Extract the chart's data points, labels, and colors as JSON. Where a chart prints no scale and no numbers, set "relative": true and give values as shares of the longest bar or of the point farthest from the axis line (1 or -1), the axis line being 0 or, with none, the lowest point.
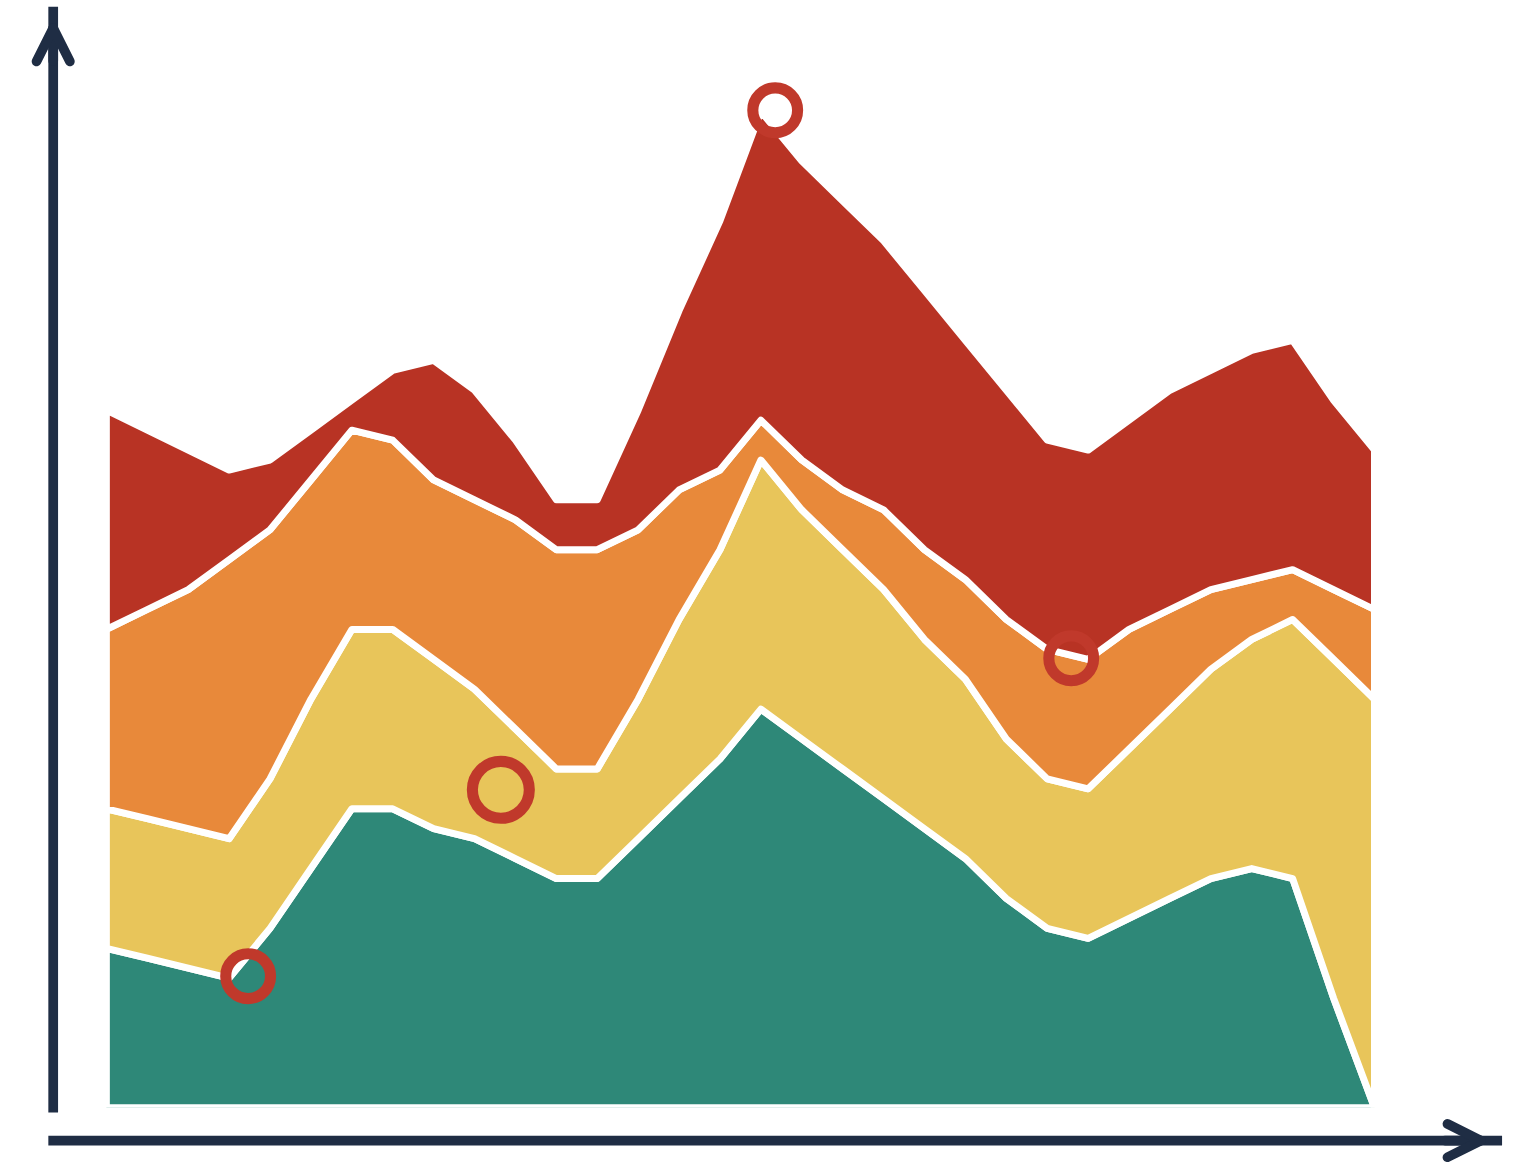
{
  "chart_data": {
    "type": "area",
    "relative": true,
    "stacked": true,
    "categories": [
      null,
      null,
      null,
      null,
      null,
      null,
      null,
      null,
      null,
      null,
      null,
      null,
      null,
      null,
      null,
      null,
      null,
      null,
      null,
      null,
      null,
      null,
      null,
      null,
      null,
      null,
      null,
      null,
      null,
      null,
      null,
      null
    ],
    "series": [
      {
        "color": "#2e8878",
        "values": [
          0.16,
          0.15,
          0.14,
          0.13,
          0.18,
          0.24,
          0.3,
          0.3,
          0.28,
          0.27,
          0.25,
          0.23,
          0.23,
          0.27,
          0.31,
          0.35,
          0.4,
          0.37,
          0.34,
          0.31,
          0.28,
          0.25,
          0.21,
          0.18,
          0.17,
          0.19,
          0.21,
          0.23,
          0.24,
          0.23,
          0.11,
          0
        ]
      },
      {
        "color": "#e8c55a",
        "values": [
          0.14,
          0.14,
          0.14,
          0.14,
          0.15,
          0.17,
          0.18,
          0.18,
          0.17,
          0.15,
          0.13,
          0.11,
          0.11,
          0.14,
          0.18,
          0.21,
          0.25,
          0.23,
          0.22,
          0.21,
          0.19,
          0.18,
          0.16,
          0.15,
          0.15,
          0.17,
          0.19,
          0.21,
          0.23,
          0.26,
          0.34,
          0.41
        ]
      },
      {
        "color": "#e8893a",
        "values": [
          0.18,
          0.21,
          0.24,
          0.28,
          0.25,
          0.22,
          0.2,
          0.19,
          0.18,
          0.19,
          0.21,
          0.22,
          0.22,
          0.17,
          0.13,
          0.08,
          0.04,
          0.05,
          0.06,
          0.08,
          0.09,
          0.1,
          0.12,
          0.13,
          0.13,
          0.12,
          0.1,
          0.08,
          0.06,
          0.05,
          0.07,
          0.09
        ]
      },
      {
        "color": "#b83324",
        "values": [
          0.22,
          0.18,
          0.14,
          0.09,
          0.07,
          0.05,
          0.03,
          0.07,
          0.12,
          0.11,
          0.08,
          0.05,
          0.05,
          0.12,
          0.18,
          0.25,
          0.31,
          0.3,
          0.29,
          0.27,
          0.26,
          0.24,
          0.23,
          0.21,
          0.21,
          0.21,
          0.22,
          0.22,
          0.23,
          0.23,
          0.19,
          0.16
        ]
      }
    ]
  }
}
